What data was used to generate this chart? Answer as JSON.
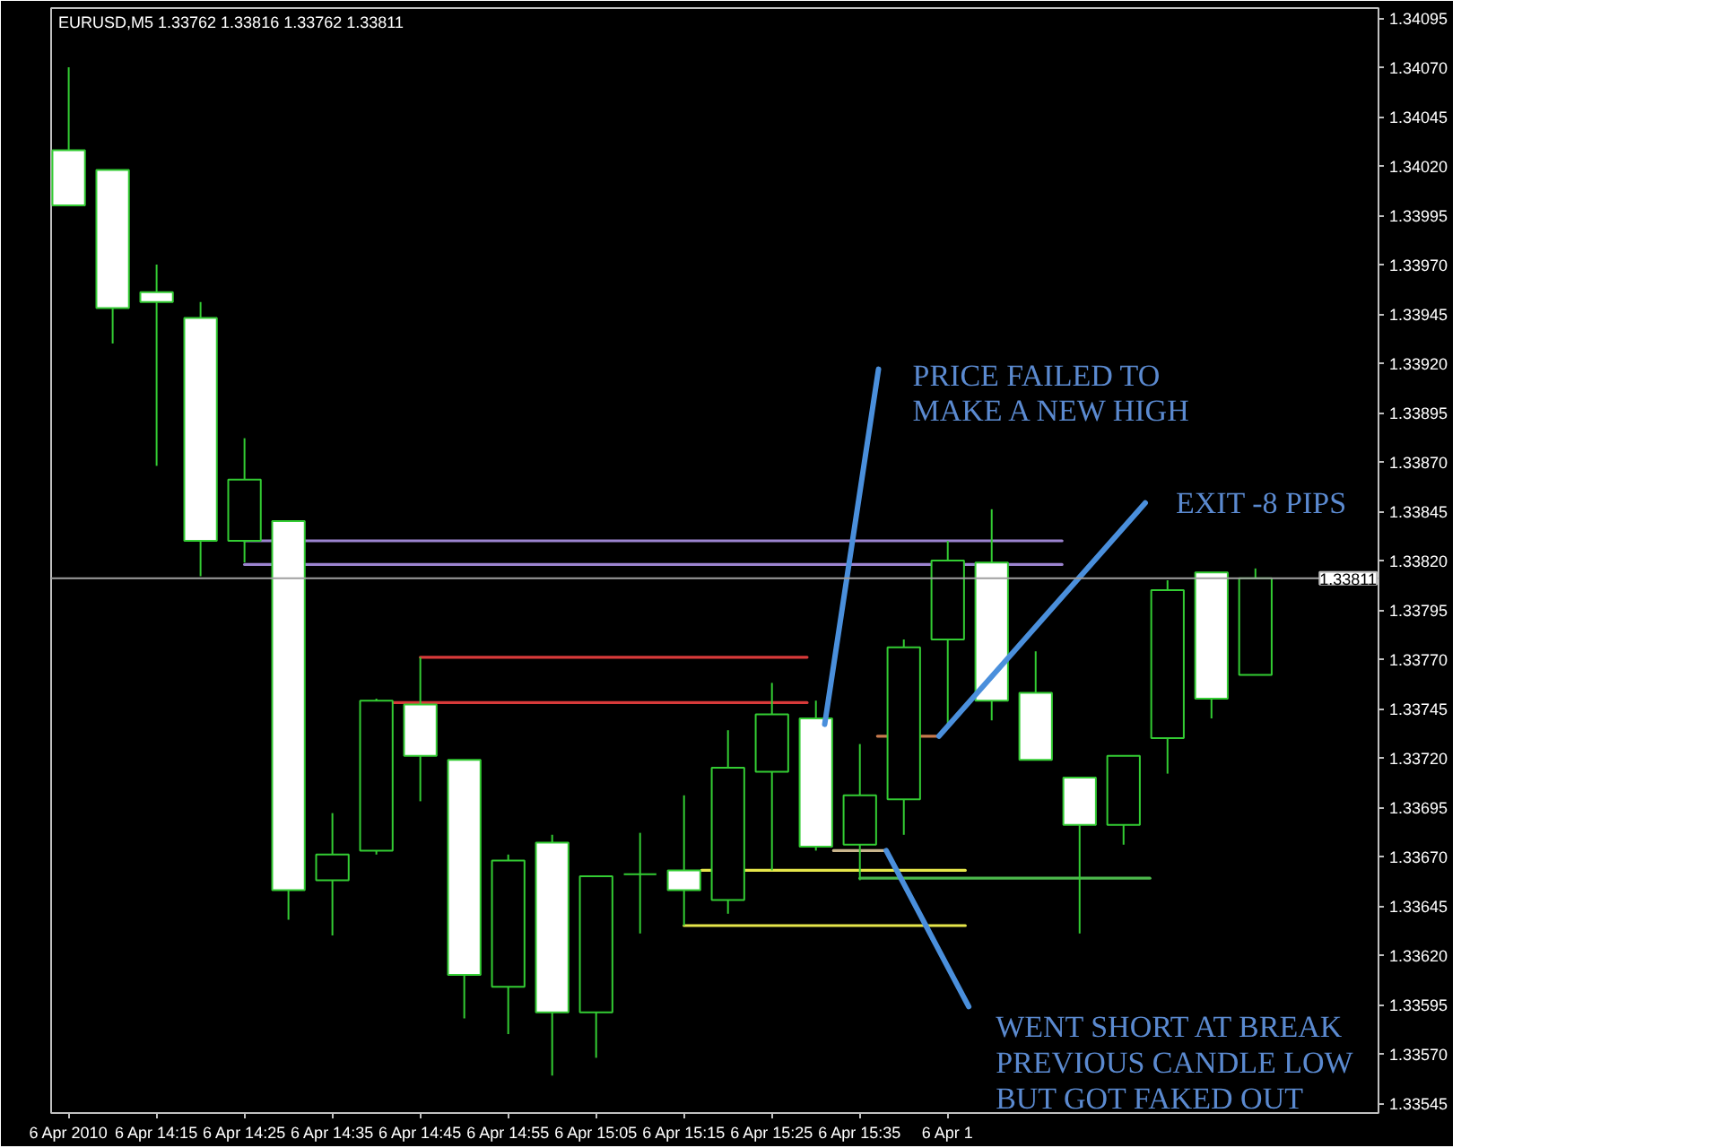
{
  "chart_data": {
    "type": "candlestick",
    "title": "EURUSD,M5 1.33762 1.33816 1.33762 1.33811",
    "x": [
      "2010-04-06T14:05",
      "2010-04-06T14:10",
      "2010-04-06T14:15",
      "2010-04-06T14:20",
      "2010-04-06T14:25",
      "2010-04-06T14:30",
      "2010-04-06T14:35",
      "2010-04-06T14:40",
      "2010-04-06T14:45",
      "2010-04-06T14:50",
      "2010-04-06T14:55",
      "2010-04-06T15:00",
      "2010-04-06T15:05",
      "2010-04-06T15:10",
      "2010-04-06T15:15",
      "2010-04-06T15:20",
      "2010-04-06T15:25",
      "2010-04-06T15:30",
      "2010-04-06T15:35",
      "2010-04-06T15:40",
      "2010-04-06T15:45",
      "2010-04-06T15:50",
      "2010-04-06T15:55",
      "2010-04-06T16:00",
      "2010-04-06T16:05",
      "2010-04-06T16:10",
      "2010-04-06T16:15",
      "2010-04-06T16:20"
    ],
    "ohlc": [
      [
        1.34028,
        1.3407,
        1.34,
        1.34
      ],
      [
        1.34018,
        1.34018,
        1.3393,
        1.33948
      ],
      [
        1.33956,
        1.3397,
        1.33868,
        1.33951
      ],
      [
        1.33943,
        1.33951,
        1.33812,
        1.3383
      ],
      [
        1.3383,
        1.33882,
        1.33819,
        1.33861
      ],
      [
        1.3384,
        1.3384,
        1.33638,
        1.33653
      ],
      [
        1.33658,
        1.33692,
        1.3363,
        1.33671
      ],
      [
        1.33673,
        1.3375,
        1.33671,
        1.33749
      ],
      [
        1.33747,
        1.33771,
        1.33698,
        1.33721
      ],
      [
        1.33719,
        1.33719,
        1.33588,
        1.3361
      ],
      [
        1.33604,
        1.33671,
        1.3358,
        1.33668
      ],
      [
        1.33677,
        1.33681,
        1.33559,
        1.33591
      ],
      [
        1.33591,
        1.3366,
        1.33568,
        1.3366
      ],
      [
        1.33661,
        1.33682,
        1.33631,
        1.33661
      ],
      [
        1.33663,
        1.33701,
        1.33635,
        1.33653
      ],
      [
        1.33648,
        1.33734,
        1.33641,
        1.33715
      ],
      [
        1.33713,
        1.33758,
        1.33663,
        1.33742
      ],
      [
        1.3374,
        1.33749,
        1.33673,
        1.33675
      ],
      [
        1.33676,
        1.33727,
        1.33658,
        1.33701
      ],
      [
        1.33699,
        1.3378,
        1.33681,
        1.33776
      ],
      [
        1.3378,
        1.3383,
        1.33737,
        1.3382
      ],
      [
        1.33819,
        1.33846,
        1.33739,
        1.33749
      ],
      [
        1.33753,
        1.33774,
        1.33719,
        1.33719
      ],
      [
        1.3371,
        1.3371,
        1.33631,
        1.33686
      ],
      [
        1.33686,
        1.33721,
        1.33676,
        1.33721
      ],
      [
        1.3373,
        1.3381,
        1.33712,
        1.33805
      ],
      [
        1.33814,
        1.33814,
        1.3374,
        1.3375
      ],
      [
        1.33762,
        1.33816,
        1.33762,
        1.33811
      ]
    ],
    "color": "#33cc33",
    "colors": [
      "#ffffff",
      "#ffffff",
      "#ffffff",
      "#ffffff",
      "#000000",
      "#ffffff",
      "#000000",
      "#000000",
      "#ffffff",
      "#ffffff",
      "#000000",
      "#ffffff",
      "#000000",
      "#33cc33",
      "#ffffff",
      "#000000",
      "#000000",
      "#ffffff",
      "#000000",
      "#000000",
      "#000000",
      "#ffffff",
      "#ffffff",
      "#ffffff",
      "#000000",
      "#000000",
      "#ffffff",
      "#000000"
    ],
    "series": [
      {
        "type": "line",
        "color": "#9c84d0",
        "x": [
          "2010-04-06T14:25",
          "2010-04-06T15:58"
        ],
        "values": [
          1.3383,
          1.3383
        ]
      },
      {
        "type": "line",
        "color": "#9c84d0",
        "x": [
          "2010-04-06T14:25",
          "2010-04-06T15:58"
        ],
        "values": [
          1.33818,
          1.33818
        ]
      },
      {
        "type": "line",
        "color": "#d83a3a",
        "x": [
          "2010-04-06T14:45",
          "2010-04-06T15:29"
        ],
        "values": [
          1.33771,
          1.33771
        ]
      },
      {
        "type": "line",
        "color": "#d83a3a",
        "x": [
          "2010-04-06T14:42",
          "2010-04-06T15:29"
        ],
        "values": [
          1.33748,
          1.33748
        ]
      },
      {
        "type": "line",
        "color": "#e6e64a",
        "x": [
          "2010-04-06T15:17",
          "2010-04-06T15:47"
        ],
        "values": [
          1.33663,
          1.33663
        ]
      },
      {
        "type": "line",
        "color": "#e6e64a",
        "x": [
          "2010-04-06T15:15",
          "2010-04-06T15:47"
        ],
        "values": [
          1.33635,
          1.33635
        ]
      },
      {
        "type": "line",
        "color": "#4cb84c",
        "x": [
          "2010-04-06T15:35",
          "2010-04-06T16:08"
        ],
        "values": [
          1.33659,
          1.33659
        ]
      },
      {
        "type": "line",
        "color": "#c9b58c",
        "x": [
          "2010-04-06T15:32",
          "2010-04-06T15:38"
        ],
        "values": [
          1.33673,
          1.33673
        ]
      },
      {
        "type": "line",
        "color": "#c87a4e",
        "x": [
          "2010-04-06T15:37",
          "2010-04-06T15:44"
        ],
        "values": [
          1.33731,
          1.33731
        ]
      }
    ],
    "ref_lines": [
      {
        "axis": "y",
        "value": 1.33811,
        "label": "1.33811",
        "color": "#a0a0a0"
      }
    ],
    "annotations": [
      {
        "text": "PRICE FAILED TO\nMAKE A NEW HIGH",
        "x": "2010-04-06T15:31",
        "y": 1.33737
      },
      {
        "text": "EXIT -8 PIPS",
        "x": "2010-04-06T15:44",
        "y": 1.33731
      },
      {
        "text": "WENT SHORT AT BREAK\nPREVIOUS CANDLE LOW\nBUT GOT FAKED OUT",
        "x": "2010-04-06T15:38",
        "y": 1.33673
      }
    ],
    "xlim": [
      "2010-04-06T14:03",
      "2010-04-06T16:34"
    ],
    "xticks": [
      {
        "value": "2010-04-06T14:05",
        "label": "6 Apr 2010"
      },
      {
        "value": "2010-04-06T14:15",
        "label": "6 Apr 14:15"
      },
      {
        "value": "2010-04-06T14:25",
        "label": "6 Apr 14:25"
      },
      {
        "value": "2010-04-06T14:35",
        "label": "6 Apr 14:35"
      },
      {
        "value": "2010-04-06T14:45",
        "label": "6 Apr 14:45"
      },
      {
        "value": "2010-04-06T14:55",
        "label": "6 Apr 14:55"
      },
      {
        "value": "2010-04-06T15:05",
        "label": "6 Apr 15:05"
      },
      {
        "value": "2010-04-06T15:15",
        "label": "6 Apr 15:15"
      },
      {
        "value": "2010-04-06T15:25",
        "label": "6 Apr 15:25"
      },
      {
        "value": "2010-04-06T15:35",
        "label": "6 Apr 15:35"
      },
      {
        "value": "2010-04-06T15:45",
        "label": "6 Apr 1"
      }
    ],
    "ylim": [
      1.3354,
      1.341
    ],
    "yticks": [
      1.33545,
      {
        "value": 1.3357,
        "label": "1.33570"
      },
      1.33595,
      {
        "value": 1.3362,
        "label": "1.33620"
      },
      1.33645,
      {
        "value": 1.3367,
        "label": "1.33670"
      },
      1.33695,
      {
        "value": 1.3372,
        "label": "1.33720"
      },
      1.33745,
      {
        "value": 1.3377,
        "label": "1.33770"
      },
      1.33795,
      {
        "value": 1.3382,
        "label": "1.33820"
      },
      1.33845,
      {
        "value": 1.3387,
        "label": "1.33870"
      },
      1.33895,
      {
        "value": 1.3392,
        "label": "1.33920"
      },
      1.33945,
      {
        "value": 1.3397,
        "label": "1.33970"
      },
      1.33995,
      {
        "value": 1.3402,
        "label": "1.34020"
      },
      1.34045,
      {
        "value": 1.3407,
        "label": "1.34070"
      },
      1.34095
    ]
  }
}
